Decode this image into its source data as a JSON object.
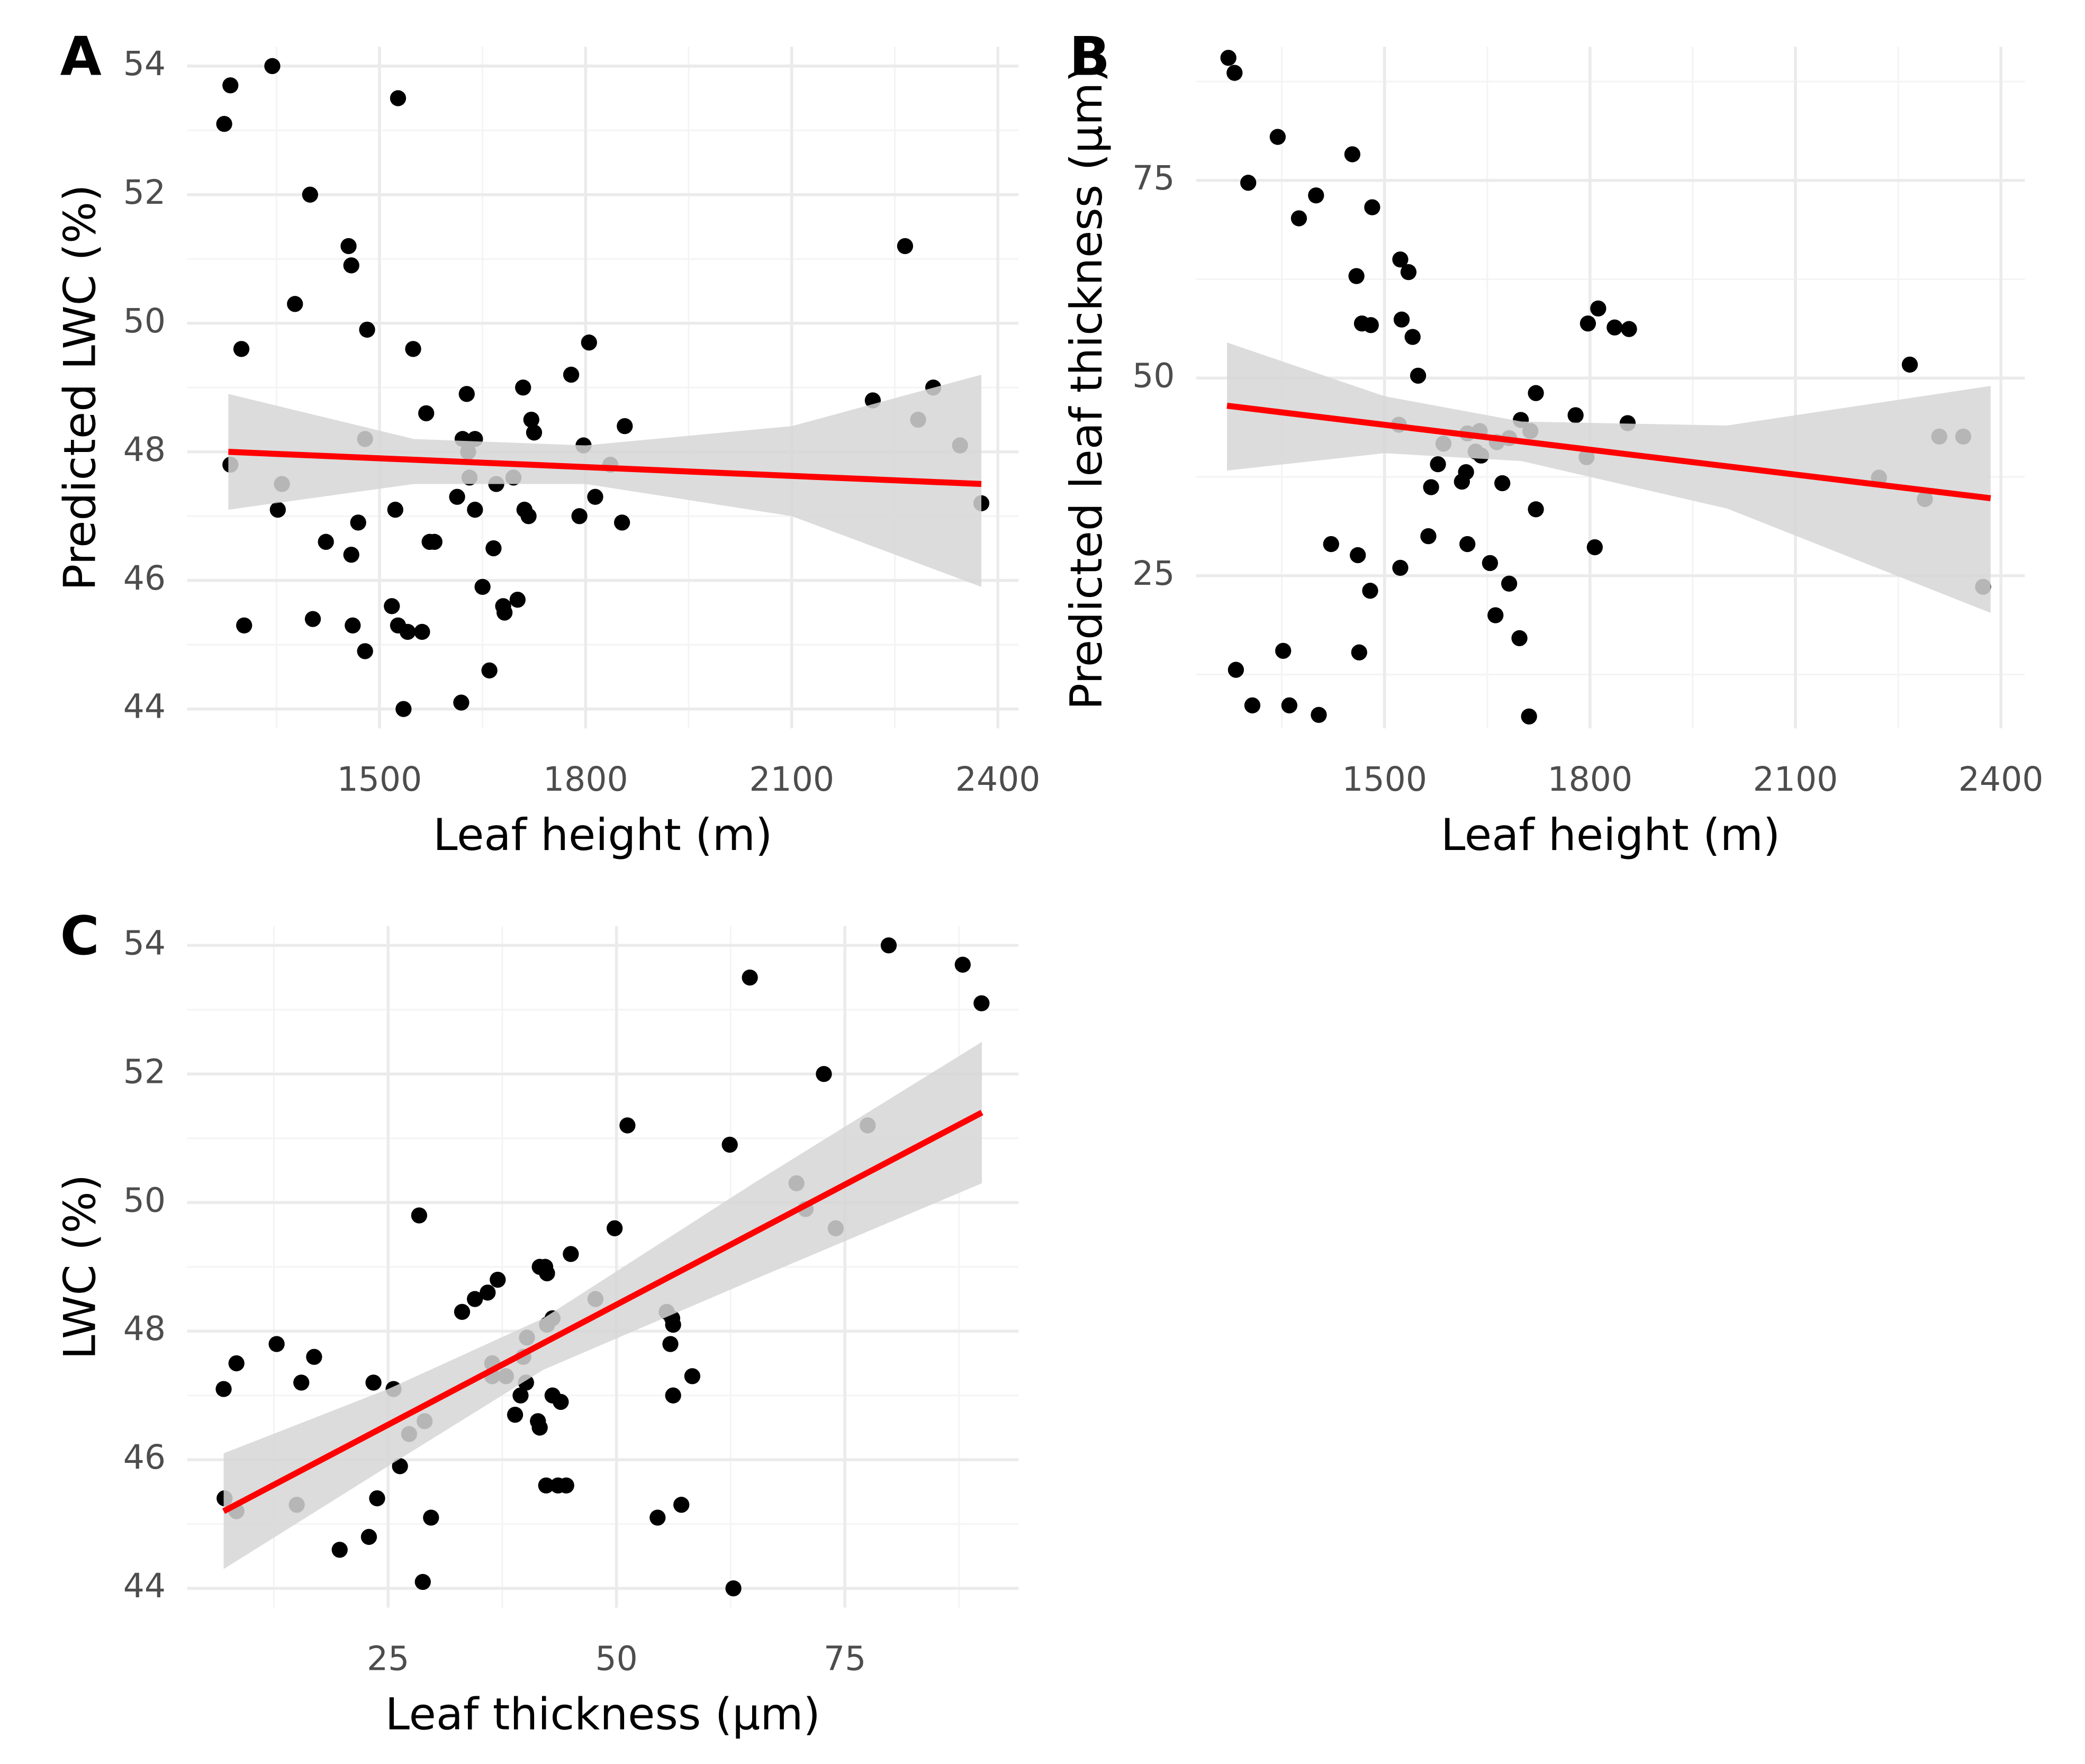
{
  "chart_data": [
    {
      "type": "scatter",
      "label": "A",
      "x_label": "Leaf height (m)",
      "y_label": "Predicted LWC (%)",
      "xlim": [
        1220,
        2430
      ],
      "ylim": [
        43.7,
        54.3
      ],
      "xticks": [
        1500,
        1800,
        2100,
        2400
      ],
      "yticks": [
        44,
        46,
        48,
        50,
        52,
        54
      ],
      "xminor": [
        1350,
        1650,
        1950,
        2250
      ],
      "yminor": [
        45,
        47,
        49,
        51,
        53
      ],
      "grid": true,
      "color": "#000000",
      "x": [
        1274,
        1283,
        1344,
        1527,
        1399,
        1455,
        1459,
        1377,
        1482,
        1299,
        1549,
        1805,
        2265,
        2218,
        2306,
        2284,
        2345,
        2376,
        1779,
        1709,
        1721,
        1725,
        1627,
        1568,
        1857,
        1797,
        1621,
        1639,
        1479,
        1283,
        1629,
        1836,
        1631,
        1695,
        1670,
        1358,
        1613,
        1814,
        1639,
        1523,
        1352,
        1711,
        1717,
        1791,
        1469,
        1853,
        1573,
        1580,
        1422,
        1666,
        1459,
        1650,
        1701,
        1680,
        1682,
        1518,
        1403,
        1461,
        1527,
        1303,
        1541,
        1562,
        1479,
        1660,
        1619,
        1535
      ],
      "values": [
        53.1,
        53.7,
        54.0,
        53.5,
        52.0,
        51.2,
        50.9,
        50.3,
        49.9,
        49.6,
        49.6,
        49.7,
        51.2,
        48.8,
        49.0,
        48.5,
        48.1,
        47.2,
        49.2,
        49.0,
        48.5,
        48.3,
        48.9,
        48.6,
        48.4,
        48.1,
        48.2,
        48.2,
        48.2,
        47.8,
        48.0,
        47.8,
        47.6,
        47.6,
        47.5,
        47.5,
        47.3,
        47.3,
        47.1,
        47.1,
        47.1,
        47.1,
        47.0,
        47.0,
        46.9,
        46.9,
        46.6,
        46.6,
        46.6,
        46.5,
        46.4,
        45.9,
        45.7,
        45.6,
        45.5,
        45.6,
        45.4,
        45.3,
        45.3,
        45.3,
        45.2,
        45.2,
        44.9,
        44.6,
        44.1,
        44.0
      ],
      "fit": {
        "color": "#ff0000",
        "x": [
          1280,
          2376
        ],
        "y": [
          48.0,
          47.5
        ]
      },
      "band": {
        "color": "#d6d6d6",
        "x": [
          1280,
          1550,
          1800,
          2100,
          2376
        ],
        "lower": [
          47.1,
          47.5,
          47.5,
          47.0,
          45.9
        ],
        "upper": [
          48.9,
          48.2,
          48.1,
          48.4,
          49.2
        ]
      }
    },
    {
      "type": "scatter",
      "label": "B",
      "x_label": "Leaf height (m)",
      "y_label": "Predicted leaf thickness (μm)",
      "xlim": [
        1225,
        2435
      ],
      "ylim": [
        5.7,
        91.9
      ],
      "xticks": [
        1500,
        1800,
        2100,
        2400
      ],
      "yticks": [
        25,
        50,
        75
      ],
      "xminor": [
        1350,
        1650,
        1950,
        2250
      ],
      "yminor": [
        12.5,
        37.5,
        62.5,
        87.5
      ],
      "grid": true,
      "color": "#000000",
      "x": [
        1272,
        1281,
        1344,
        1301,
        1453,
        1400,
        1375,
        1482,
        1523,
        1535,
        1459,
        1467,
        1480,
        1525,
        1541,
        1549,
        1812,
        1797,
        1836,
        1857,
        2267,
        1721,
        1779,
        1855,
        1521,
        1699,
        1639,
        1621,
        1713,
        1682,
        1586,
        1664,
        1633,
        1641,
        1795,
        1578,
        1619,
        1613,
        1672,
        1568,
        2222,
        2289,
        2310,
        2345,
        1721,
        1564,
        1422,
        1621,
        1807,
        1461,
        1654,
        1523,
        1682,
        1479,
        2374,
        1662,
        1697,
        1352,
        1463,
        1283,
        1307,
        1361,
        1404,
        1711
      ],
      "values": [
        90.5,
        88.6,
        80.5,
        74.7,
        78.3,
        73.1,
        70.2,
        71.6,
        65.0,
        63.4,
        62.9,
        56.9,
        56.7,
        57.4,
        55.2,
        50.3,
        58.8,
        56.9,
        56.4,
        56.2,
        51.7,
        48.1,
        45.3,
        44.3,
        44.1,
        44.7,
        43.3,
        43.0,
        43.3,
        42.4,
        41.7,
        41.9,
        40.7,
        40.2,
        40.0,
        39.1,
        38.1,
        36.9,
        36.7,
        36.2,
        37.4,
        34.7,
        42.6,
        42.6,
        33.4,
        30.0,
        29.0,
        29.0,
        28.6,
        27.6,
        26.6,
        26.0,
        24.0,
        23.1,
        23.6,
        20.0,
        17.1,
        15.5,
        15.3,
        13.1,
        8.6,
        8.6,
        7.4,
        7.2
      ],
      "fit": {
        "color": "#ff0000",
        "x": [
          1270,
          2385
        ],
        "y": [
          46.5,
          34.8
        ]
      },
      "band": {
        "color": "#d6d6d6",
        "x": [
          1270,
          1500,
          1700,
          2000,
          2385
        ],
        "lower": [
          38.3,
          40.5,
          39.5,
          33.5,
          20.3
        ],
        "upper": [
          54.5,
          47.7,
          44.5,
          44.0,
          49.0
        ]
      }
    },
    {
      "type": "scatter",
      "label": "C",
      "x_label": "Leaf thickness (μm)",
      "y_label": "LWC (%)",
      "xlim": [
        3,
        94
      ],
      "ylim": [
        43.7,
        54.3
      ],
      "xticks": [
        25,
        50,
        75
      ],
      "yticks": [
        44,
        46,
        48,
        50,
        52,
        54
      ],
      "xminor": [
        12.5,
        37.5,
        62.5,
        87.5
      ],
      "yminor": [
        45,
        47,
        49,
        51,
        53
      ],
      "grid": true,
      "color": "#000000",
      "x": [
        79.8,
        87.9,
        89.96,
        64.6,
        72.7,
        77.5,
        51.2,
        62.4,
        69.7,
        70.7,
        74.0,
        49.8,
        28.4,
        45.0,
        41.6,
        42.2,
        42.4,
        37.0,
        35.9,
        34.5,
        47.7,
        33.1,
        55.5,
        56.1,
        43.0,
        42.4,
        56.2,
        40.2,
        55.9,
        12.8,
        16.9,
        8.4,
        36.4,
        39.8,
        37.9,
        58.3,
        36.4,
        23.4,
        15.5,
        25.6,
        40.1,
        7.0,
        39.5,
        56.2,
        43.0,
        43.9,
        38.9,
        41.4,
        41.6,
        29.0,
        27.3,
        26.3,
        44.5,
        43.6,
        42.3,
        23.8,
        7.1,
        8.4,
        15.0,
        57.1,
        29.7,
        54.5,
        22.9,
        19.7,
        28.8,
        62.8
      ],
      "values": [
        54.0,
        53.7,
        53.1,
        53.5,
        52.0,
        51.2,
        51.2,
        50.9,
        50.3,
        49.9,
        49.6,
        49.6,
        49.8,
        49.2,
        49.0,
        49.0,
        48.9,
        48.8,
        48.6,
        48.5,
        48.5,
        48.3,
        48.3,
        48.2,
        48.2,
        48.1,
        48.1,
        47.9,
        47.8,
        47.8,
        47.6,
        47.5,
        47.5,
        47.6,
        47.3,
        47.3,
        47.3,
        47.2,
        47.2,
        47.1,
        47.2,
        47.1,
        47.0,
        47.0,
        47.0,
        46.9,
        46.7,
        46.6,
        46.5,
        46.6,
        46.4,
        45.9,
        45.6,
        45.6,
        45.6,
        45.4,
        45.4,
        45.2,
        45.3,
        45.3,
        45.1,
        45.1,
        44.8,
        44.6,
        44.1,
        44.0
      ],
      "fit": {
        "color": "#ff0000",
        "x": [
          7,
          90
        ],
        "y": [
          45.2,
          51.4
        ]
      },
      "band": {
        "color": "#d6d6d6",
        "x": [
          7,
          25,
          42,
          65,
          90
        ],
        "lower": [
          44.3,
          45.9,
          47.4,
          48.8,
          50.3
        ],
        "upper": [
          46.1,
          47.1,
          48.2,
          50.3,
          52.5
        ]
      }
    }
  ]
}
